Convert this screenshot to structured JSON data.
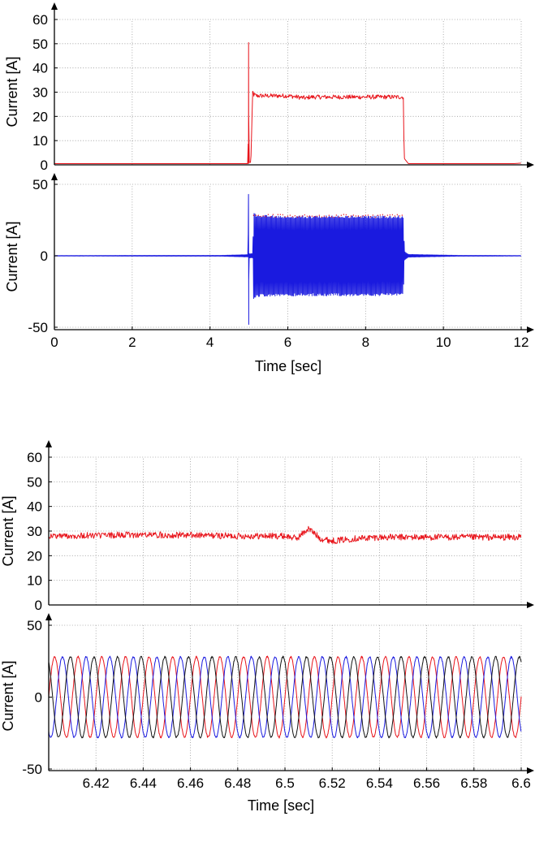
{
  "colors": {
    "red": "#e8141b",
    "blue": "#1a1adf",
    "black": "#111111"
  },
  "chart_data": [
    {
      "type": "line",
      "panel": "top-upper",
      "title": "",
      "xlabel": "",
      "ylabel": "Current [A]",
      "xlim": [
        0,
        12
      ],
      "ylim": [
        0,
        60
      ],
      "yticks": [
        "0",
        "10",
        "20",
        "30",
        "40",
        "50",
        "60"
      ],
      "grid": true,
      "series": [
        {
          "color": "red",
          "x": [
            0,
            4.98,
            4.99,
            5.0,
            5.01,
            5.05,
            5.1,
            5.12,
            5.2,
            6.0,
            6.5,
            6.55,
            7.0,
            8.0,
            8.97,
            8.99,
            9.0,
            9.1,
            9.2,
            11.8,
            12.0
          ],
          "y": [
            0.5,
            0.5,
            50.5,
            1,
            1,
            1,
            31,
            29,
            28.5,
            28.5,
            27.5,
            28,
            28,
            28,
            28,
            4,
            2.5,
            0.5,
            0.5,
            0.5,
            0.7
          ]
        }
      ]
    },
    {
      "type": "line",
      "panel": "top-lower",
      "title": "",
      "xlabel": "Time [sec]",
      "ylabel": "Current [A]",
      "xlim": [
        0,
        12
      ],
      "ylim": [
        -50,
        50
      ],
      "xticks": [
        "0",
        "2",
        "4",
        "6",
        "8",
        "10",
        "12"
      ],
      "yticks": [
        "-50",
        "0",
        "50"
      ],
      "grid": true,
      "series": [
        {
          "color": "blue",
          "envelope": true,
          "x": [
            0,
            4.3,
            4.9,
            4.98,
            4.99,
            5.0,
            5.02,
            5.1,
            5.12,
            5.2,
            6.5,
            8.97,
            9.0,
            9.1,
            10.4,
            12.0
          ],
          "amp": [
            0.2,
            0.3,
            0.8,
            0.8,
            43,
            1.5,
            1.5,
            1.5,
            30,
            28.5,
            28,
            28,
            3,
            1,
            0.3,
            0.2
          ]
        }
      ]
    },
    {
      "type": "line",
      "panel": "bottom-upper",
      "title": "",
      "xlabel": "",
      "ylabel": "Current [A]",
      "xlim": [
        6.4,
        6.6
      ],
      "ylim": [
        0,
        60
      ],
      "yticks": [
        "0",
        "10",
        "20",
        "30",
        "40",
        "50",
        "60"
      ],
      "grid": true,
      "series": [
        {
          "color": "red",
          "x": [
            6.4,
            6.42,
            6.44,
            6.46,
            6.48,
            6.5,
            6.505,
            6.51,
            6.515,
            6.52,
            6.53,
            6.54,
            6.56,
            6.58,
            6.6
          ],
          "y": [
            28,
            28.2,
            28.5,
            28.3,
            28,
            28,
            27,
            31,
            27,
            26,
            27,
            27.5,
            27.5,
            27.5,
            27.5
          ]
        }
      ]
    },
    {
      "type": "line",
      "panel": "bottom-lower",
      "title": "",
      "xlabel": "Time [sec]",
      "ylabel": "Current [A]",
      "xlim": [
        6.4,
        6.6
      ],
      "ylim": [
        -50,
        50
      ],
      "xticks": [
        "6.42",
        "6.44",
        "6.46",
        "6.48",
        "6.5",
        "6.52",
        "6.54",
        "6.56",
        "6.58",
        "6.6"
      ],
      "yticks": [
        "-50",
        "0",
        "50"
      ],
      "grid": true,
      "series": [
        {
          "color": "red",
          "amplitude": 28,
          "frequency_hz": 100,
          "phase_deg": 0
        },
        {
          "color": "blue",
          "amplitude": 28,
          "frequency_hz": 100,
          "phase_deg": -120
        },
        {
          "color": "black",
          "amplitude": 28,
          "frequency_hz": 100,
          "phase_deg": 120
        }
      ]
    }
  ]
}
